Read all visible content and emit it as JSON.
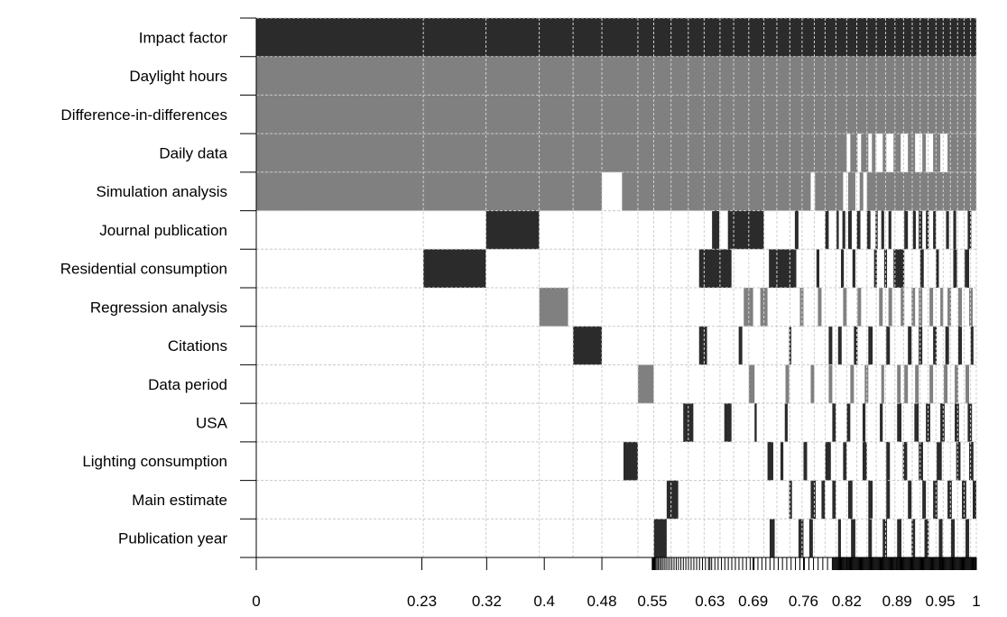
{
  "chart_data": {
    "type": "heatmap",
    "title": "",
    "xlabel": "",
    "ylabel": "",
    "xlim": [
      0,
      1
    ],
    "x_tick_labels": [
      "0",
      "0.23",
      "0.32",
      "0.4",
      "0.48",
      "0.55",
      "0.63",
      "0.69",
      "0.76",
      "0.82",
      "0.89",
      "0.95",
      "1"
    ],
    "x_tick_values": [
      0,
      0.23,
      0.32,
      0.4,
      0.48,
      0.55,
      0.63,
      0.69,
      0.76,
      0.82,
      0.89,
      0.95,
      1
    ],
    "variables": [
      "Impact factor",
      "Daylight hours",
      "Difference-in-differences",
      "Daily data",
      "Simulation analysis",
      "Journal publication",
      "Residential consumption",
      "Regression analysis",
      "Citations",
      "Data period",
      "USA",
      "Lighting consumption",
      "Main estimate",
      "Publication year"
    ],
    "model_boundaries": [
      0,
      0.232,
      0.319,
      0.393,
      0.44,
      0.48,
      0.53,
      0.552,
      0.576,
      0.6,
      0.622,
      0.644,
      0.663,
      0.684,
      0.705,
      0.723,
      0.741,
      0.758,
      0.775,
      0.79,
      0.805,
      0.82,
      0.834,
      0.848,
      0.861,
      0.874,
      0.887,
      0.899,
      0.911,
      0.922,
      0.933,
      0.944,
      0.954,
      0.964,
      0.974,
      0.983,
      0.992,
      1.0
    ],
    "legend": {
      "positive": "#2b2b2b",
      "negative": "#808080",
      "excluded": "#ffffff"
    },
    "rows": [
      {
        "sign": "positive",
        "intervals": [
          [
            0,
            1
          ]
        ]
      },
      {
        "sign": "negative",
        "intervals": [
          [
            0,
            1
          ]
        ]
      },
      {
        "sign": "negative",
        "intervals": [
          [
            0,
            1
          ]
        ]
      },
      {
        "sign": "negative",
        "intervals": [
          [
            0,
            0.82
          ],
          [
            0.825,
            0.835
          ],
          [
            0.84,
            0.85
          ],
          [
            0.855,
            0.86
          ],
          [
            0.87,
            0.875
          ],
          [
            0.885,
            0.895
          ],
          [
            0.905,
            0.915
          ],
          [
            0.925,
            0.93
          ],
          [
            0.94,
            0.95
          ],
          [
            0.96,
            1
          ]
        ]
      },
      {
        "sign": "negative",
        "intervals": [
          [
            0,
            0.48
          ],
          [
            0.508,
            0.77
          ],
          [
            0.776,
            0.815
          ],
          [
            0.822,
            0.832
          ],
          [
            0.838,
            0.843
          ],
          [
            0.848,
            1
          ]
        ]
      },
      {
        "sign": "positive",
        "intervals": [
          [
            0.319,
            0.393
          ],
          [
            0.633,
            0.643
          ],
          [
            0.655,
            0.705
          ],
          [
            0.748,
            0.753
          ],
          [
            0.79,
            0.795
          ],
          [
            0.806,
            0.809
          ],
          [
            0.814,
            0.818
          ],
          [
            0.822,
            0.827
          ],
          [
            0.834,
            0.839
          ],
          [
            0.848,
            0.853
          ],
          [
            0.86,
            0.863
          ],
          [
            0.868,
            0.872
          ],
          [
            0.878,
            0.882
          ],
          [
            0.9,
            0.905
          ],
          [
            0.912,
            0.916
          ],
          [
            0.92,
            0.925
          ],
          [
            0.93,
            0.934
          ],
          [
            0.94,
            0.944
          ],
          [
            0.958,
            0.962
          ],
          [
            0.968,
            0.972
          ],
          [
            0.988,
            0.993
          ]
        ]
      },
      {
        "sign": "positive",
        "intervals": [
          [
            0.232,
            0.319
          ],
          [
            0.615,
            0.66
          ],
          [
            0.712,
            0.75
          ],
          [
            0.778,
            0.782
          ],
          [
            0.812,
            0.816
          ],
          [
            0.828,
            0.832
          ],
          [
            0.858,
            0.862
          ],
          [
            0.872,
            0.876
          ],
          [
            0.885,
            0.9
          ],
          [
            0.922,
            0.927
          ],
          [
            0.944,
            0.948
          ],
          [
            0.968,
            0.973
          ],
          [
            0.984,
            0.99
          ]
        ]
      },
      {
        "sign": "negative",
        "intervals": [
          [
            0.393,
            0.433
          ],
          [
            0.677,
            0.69
          ],
          [
            0.7,
            0.71
          ],
          [
            0.755,
            0.76
          ],
          [
            0.78,
            0.785
          ],
          [
            0.815,
            0.82
          ],
          [
            0.835,
            0.84
          ],
          [
            0.865,
            0.87
          ],
          [
            0.878,
            0.883
          ],
          [
            0.895,
            0.9
          ],
          [
            0.91,
            0.915
          ],
          [
            0.92,
            0.925
          ],
          [
            0.935,
            0.94
          ],
          [
            0.95,
            0.954
          ],
          [
            0.96,
            0.965
          ],
          [
            0.975,
            0.98
          ],
          [
            0.99,
            0.995
          ]
        ]
      },
      {
        "sign": "positive",
        "intervals": [
          [
            0.44,
            0.48
          ],
          [
            0.615,
            0.626
          ],
          [
            0.67,
            0.675
          ],
          [
            0.74,
            0.743
          ],
          [
            0.795,
            0.8
          ],
          [
            0.808,
            0.813
          ],
          [
            0.83,
            0.835
          ],
          [
            0.85,
            0.856
          ],
          [
            0.875,
            0.88
          ],
          [
            0.905,
            0.91
          ],
          [
            0.92,
            0.925
          ],
          [
            0.94,
            0.945
          ],
          [
            0.957,
            0.962
          ],
          [
            0.975,
            0.98
          ],
          [
            0.992,
            0.996
          ]
        ]
      },
      {
        "sign": "negative",
        "intervals": [
          [
            0.53,
            0.552
          ],
          [
            0.684,
            0.692
          ],
          [
            0.735,
            0.74
          ],
          [
            0.77,
            0.775
          ],
          [
            0.795,
            0.8
          ],
          [
            0.825,
            0.83
          ],
          [
            0.845,
            0.85
          ],
          [
            0.868,
            0.872
          ],
          [
            0.89,
            0.895
          ],
          [
            0.9,
            0.905
          ],
          [
            0.915,
            0.92
          ],
          [
            0.935,
            0.94
          ],
          [
            0.955,
            0.96
          ],
          [
            0.97,
            0.975
          ],
          [
            0.985,
            0.99
          ]
        ]
      },
      {
        "sign": "positive",
        "intervals": [
          [
            0.593,
            0.607
          ],
          [
            0.65,
            0.66
          ],
          [
            0.692,
            0.695
          ],
          [
            0.734,
            0.738
          ],
          [
            0.8,
            0.805
          ],
          [
            0.82,
            0.825
          ],
          [
            0.842,
            0.846
          ],
          [
            0.866,
            0.87
          ],
          [
            0.89,
            0.896
          ],
          [
            0.914,
            0.92
          ],
          [
            0.93,
            0.936
          ],
          [
            0.95,
            0.956
          ],
          [
            0.97,
            0.976
          ],
          [
            0.988,
            0.994
          ]
        ]
      },
      {
        "sign": "positive",
        "intervals": [
          [
            0.51,
            0.53
          ],
          [
            0.71,
            0.718
          ],
          [
            0.728,
            0.732
          ],
          [
            0.76,
            0.765
          ],
          [
            0.79,
            0.798
          ],
          [
            0.815,
            0.82
          ],
          [
            0.842,
            0.848
          ],
          [
            0.875,
            0.88
          ],
          [
            0.898,
            0.904
          ],
          [
            0.92,
            0.926
          ],
          [
            0.945,
            0.952
          ],
          [
            0.972,
            0.978
          ],
          [
            0.99,
            0.996
          ]
        ]
      },
      {
        "sign": "positive",
        "intervals": [
          [
            0.57,
            0.586
          ],
          [
            0.74,
            0.744
          ],
          [
            0.77,
            0.777
          ],
          [
            0.785,
            0.79
          ],
          [
            0.8,
            0.805
          ],
          [
            0.822,
            0.828
          ],
          [
            0.85,
            0.856
          ],
          [
            0.875,
            0.88
          ],
          [
            0.905,
            0.91
          ],
          [
            0.925,
            0.93
          ],
          [
            0.94,
            0.946
          ],
          [
            0.96,
            0.966
          ],
          [
            0.98,
            0.986
          ],
          [
            0.995,
            1
          ]
        ]
      },
      {
        "sign": "positive",
        "intervals": [
          [
            0.552,
            0.57
          ],
          [
            0.713,
            0.72
          ],
          [
            0.753,
            0.76
          ],
          [
            0.768,
            0.773
          ],
          [
            0.808,
            0.812
          ],
          [
            0.826,
            0.832
          ],
          [
            0.85,
            0.855
          ],
          [
            0.87,
            0.876
          ],
          [
            0.89,
            0.896
          ],
          [
            0.91,
            0.915
          ],
          [
            0.928,
            0.934
          ],
          [
            0.948,
            0.953
          ],
          [
            0.965,
            0.97
          ],
          [
            0.985,
            0.99
          ]
        ]
      }
    ]
  }
}
